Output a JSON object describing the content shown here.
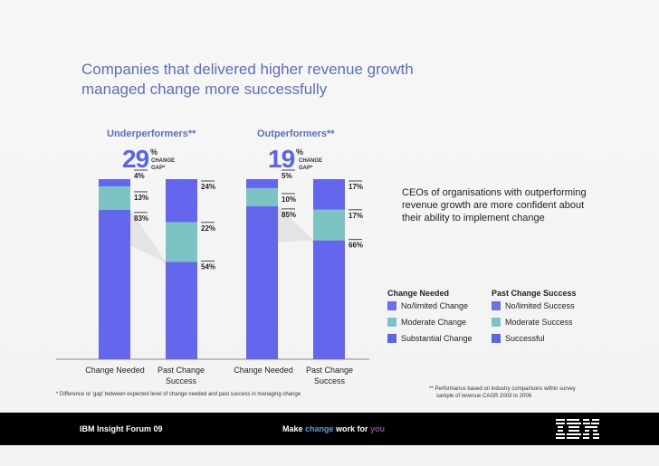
{
  "title": "Companies that delivered higher revenue growth managed change more successfully",
  "groups": {
    "under": {
      "label": "Underperformers**",
      "gap_value": "29",
      "gap_pct": "%",
      "gap_caption": "CHANGE GAP*"
    },
    "out": {
      "label": "Outperformers**",
      "gap_value": "19",
      "gap_pct": "%",
      "gap_caption": "CHANGE GAP*"
    }
  },
  "chart_data": {
    "type": "bar",
    "subtype": "stacked-100",
    "title": "Companies that delivered higher revenue growth managed change more successfully",
    "groups": [
      "Underperformers**",
      "Outperformers**"
    ],
    "categories": [
      "Change Needed",
      "Past Change Success"
    ],
    "series_change_needed": [
      "No/limited Change",
      "Moderate Change",
      "Substantial Change"
    ],
    "series_past_success": [
      "No/limited Success",
      "Moderate Success",
      "Successful"
    ],
    "values": {
      "Underperformers": {
        "change_needed": {
          "no_limited": 4,
          "moderate": 13,
          "substantial": 83
        },
        "past_change_success": {
          "no_limited": 24,
          "moderate": 22,
          "successful": 54
        }
      },
      "Outperformers": {
        "change_needed": {
          "no_limited": 5,
          "moderate": 10,
          "substantial": 85
        },
        "past_change_success": {
          "no_limited": 17,
          "moderate": 17,
          "successful": 66
        }
      }
    },
    "labels": {
      "u_cn": [
        "4%",
        "13%",
        "83%"
      ],
      "u_ps": [
        "24%",
        "22%",
        "54%"
      ],
      "o_cn": [
        "5%",
        "10%",
        "85%"
      ],
      "o_ps": [
        "17%",
        "17%",
        "66%"
      ]
    },
    "change_gap": {
      "Underperformers": 29,
      "Outperformers": 19
    },
    "ylim": [
      0,
      100
    ]
  },
  "xlabels": {
    "u_cn": "Change Needed",
    "u_ps_1": "Past Change",
    "u_ps_2": "Success",
    "o_cn": "Change Needed",
    "o_ps_1": "Past Change",
    "o_ps_2": "Success"
  },
  "colors": {
    "light": "#6d6ff0",
    "moderate": "#7cc4c4",
    "dark": "#5b63e8",
    "bar_blue": "#6466ee"
  },
  "insight": "CEOs of organisations with outperforming revenue growth are more confident about their ability to implement change",
  "legend": {
    "change_head": "Change Needed",
    "success_head": "Past Change Success",
    "change_items": [
      "No/limited Change",
      "Moderate Change",
      "Substantial Change"
    ],
    "success_items": [
      "No/limited Success",
      "Moderate Success",
      "Successful"
    ]
  },
  "footnotes": {
    "gap": "* Difference or 'gap' between expected level of change needed and past success in managing change",
    "perf_1": "** Performance based on industry comparisons within survey",
    "perf_2": "sample of revenue CAGR 2003 to 2006"
  },
  "footer": {
    "left": "IBM Insight Forum 09",
    "tag_1": "Make ",
    "tag_2": "change",
    "tag_3": " work for ",
    "tag_4": "you",
    "tag_colors": {
      "change": "#4aa0e0",
      "you": "#9b3fb0"
    }
  }
}
